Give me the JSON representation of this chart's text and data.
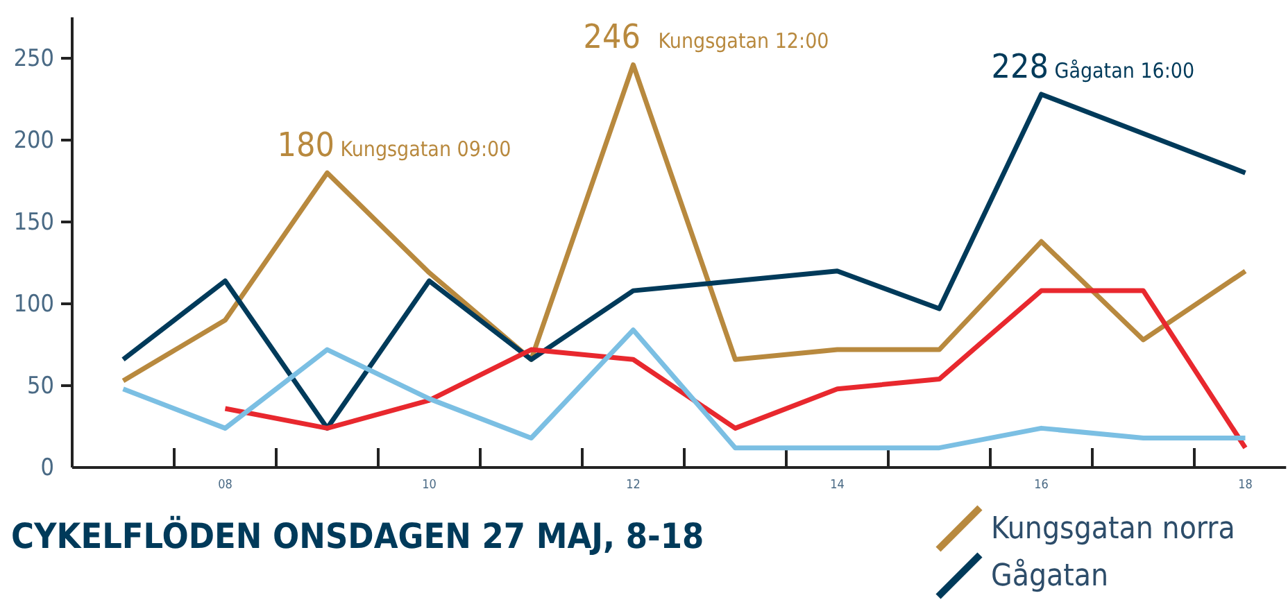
{
  "chart_data": {
    "type": "line",
    "title": "CYKELFLÖDEN ONSDAGEN 27 MAJ, 8-18",
    "x": [
      7,
      8,
      9,
      10,
      11,
      12,
      13,
      14,
      15,
      16,
      17,
      18
    ],
    "series": [
      {
        "name": "Kungsgatan norra",
        "color": "#b8893e",
        "values": [
          53,
          90,
          180,
          119,
          66,
          246,
          66,
          72,
          72,
          138,
          78,
          120
        ]
      },
      {
        "name": "Gågatan",
        "color": "#003a5a",
        "values": [
          66,
          114,
          24,
          114,
          66,
          108,
          114,
          120,
          97,
          228,
          204,
          180
        ]
      },
      {
        "color": "#e8282e",
        "values": [
          null,
          36,
          24,
          41,
          72,
          66,
          24,
          48,
          54,
          108,
          108,
          12
        ]
      },
      {
        "color": "#7bbfe3",
        "values": [
          48,
          24,
          72,
          42,
          18,
          84,
          12,
          12,
          12,
          24,
          18,
          18
        ]
      }
    ],
    "xlim": [
      6.5,
      18.4
    ],
    "xticks": [
      {
        "value": 7.5,
        "label": null
      },
      {
        "value": 8,
        "label": "08"
      },
      {
        "value": 8.5,
        "label": null
      },
      {
        "value": 9.5,
        "label": null
      },
      {
        "value": 10,
        "label": "10"
      },
      {
        "value": 10.5,
        "label": null
      },
      {
        "value": 11.5,
        "label": null
      },
      {
        "value": 12,
        "label": "12"
      },
      {
        "value": 12.5,
        "label": null
      },
      {
        "value": 13.5,
        "label": null
      },
      {
        "value": 14,
        "label": "14"
      },
      {
        "value": 14.5,
        "label": null
      },
      {
        "value": 15.5,
        "label": null
      },
      {
        "value": 16,
        "label": "16"
      },
      {
        "value": 16.5,
        "label": null
      },
      {
        "value": 17.5,
        "label": null
      },
      {
        "value": 18,
        "label": "18"
      }
    ],
    "ylim": [
      0,
      275
    ],
    "yticks": [
      0,
      50,
      100,
      150,
      200,
      250
    ],
    "grid": false,
    "legend": "bottom right",
    "marker": "none",
    "line_style": "solid",
    "annotations": [
      {
        "text": "180 Kungsgatan 09:00",
        "x": 9,
        "y": 180
      },
      {
        "text": "246   Kungsgatan 12:00",
        "x": 12,
        "y": 246
      },
      {
        "text": "228 Gågatan 16:00",
        "x": 16,
        "y": 228
      }
    ]
  }
}
